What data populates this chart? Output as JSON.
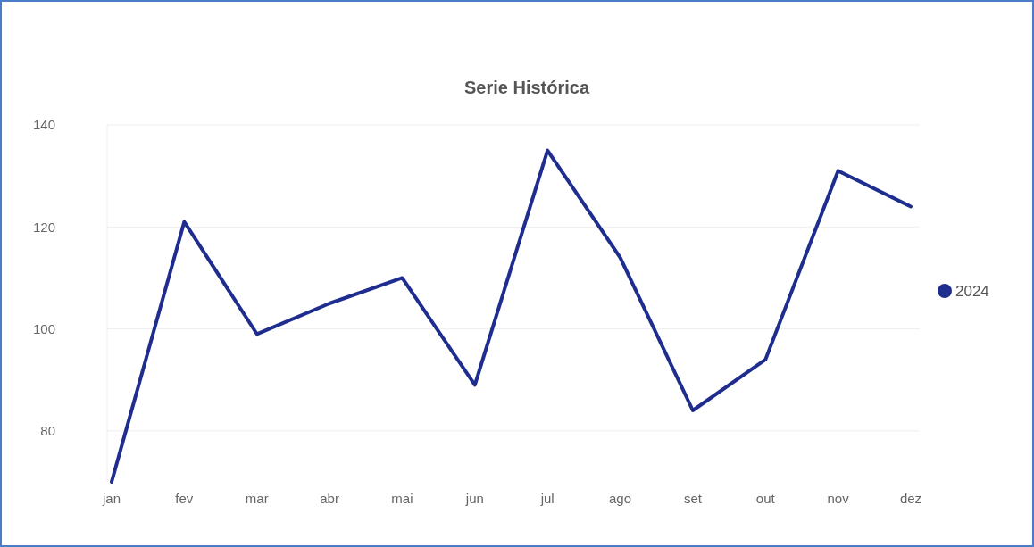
{
  "chart_data": {
    "type": "line",
    "title": "Serie Histórica",
    "categories": [
      "jan",
      "fev",
      "mar",
      "abr",
      "mai",
      "jun",
      "jul",
      "ago",
      "set",
      "out",
      "nov",
      "dez"
    ],
    "series": [
      {
        "name": "2024",
        "color": "#1f2d8f",
        "values": [
          70,
          121,
          99,
          105,
          110,
          89,
          135,
          114,
          84,
          94,
          131,
          124
        ]
      }
    ],
    "ylim": [
      70,
      140
    ],
    "yticks": [
      80,
      100,
      120,
      140
    ],
    "grid": "y",
    "legend": "right",
    "marker": "none",
    "line_style": "solid"
  }
}
